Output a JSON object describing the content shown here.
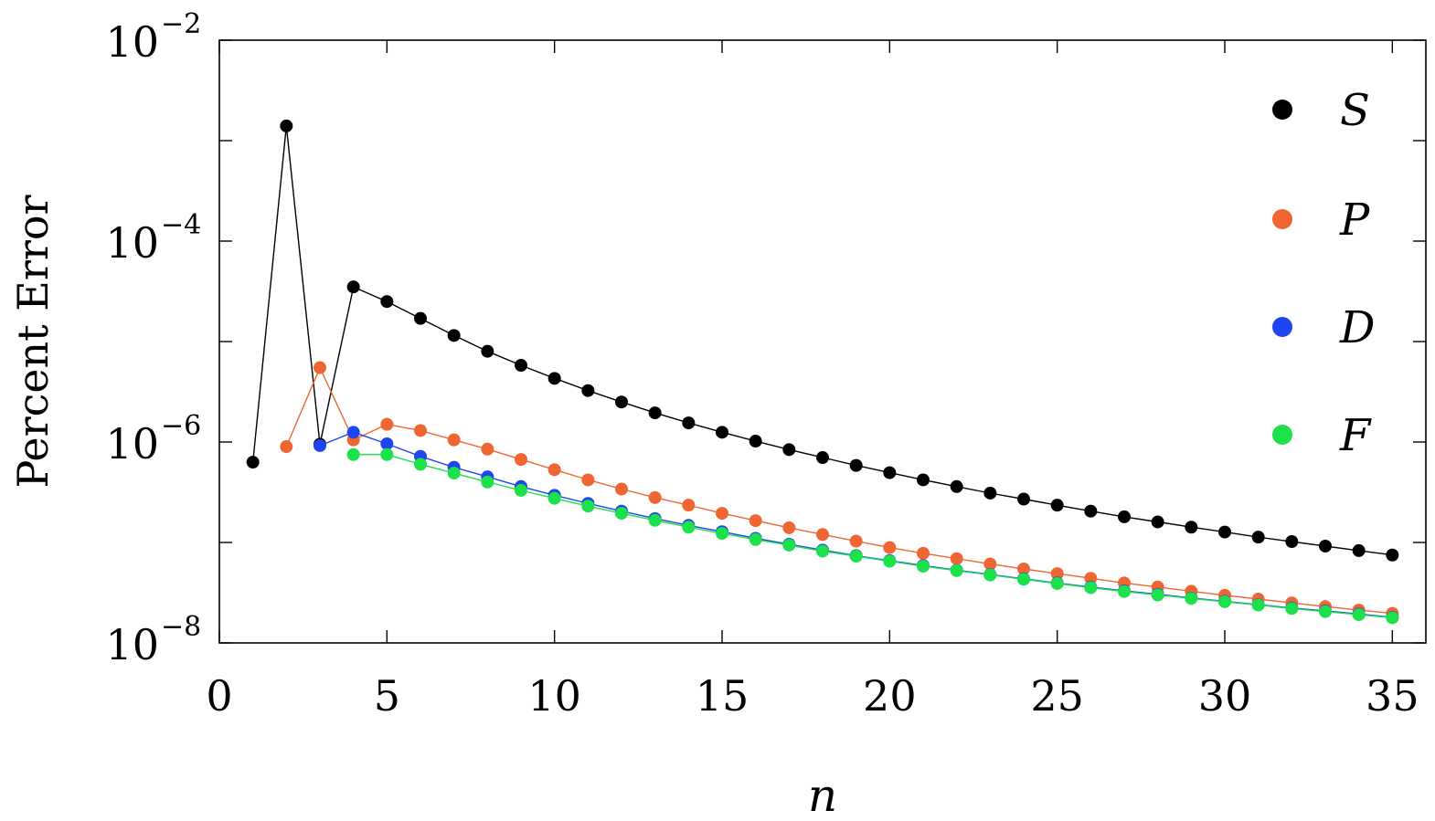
{
  "chart_data": {
    "type": "scatter",
    "xlabel": "n",
    "ylabel": "Percent Error",
    "xlim": [
      0,
      36
    ],
    "ylim": [
      1e-08,
      0.01
    ],
    "yscale": "log",
    "x_ticks": [
      "0",
      "5",
      "10",
      "15",
      "20",
      "25",
      "30",
      "35"
    ],
    "y_ticks": [
      {
        "base": "10",
        "exp": "−8"
      },
      {
        "base": "10",
        "exp": "−6"
      },
      {
        "base": "10",
        "exp": "−4"
      },
      {
        "base": "10",
        "exp": "−2"
      }
    ],
    "legend_position": "right",
    "series": [
      {
        "name": "S",
        "color": "#000000",
        "x": [
          1,
          2,
          3,
          4,
          5,
          6,
          7,
          8,
          9,
          10,
          11,
          12,
          13,
          14,
          15,
          16,
          17,
          18,
          19,
          20,
          21,
          22,
          23,
          24,
          25,
          26,
          27,
          28,
          29,
          30,
          31,
          32,
          33,
          34,
          35
        ],
        "y": [
          6.3e-07,
          0.0014,
          9.5e-07,
          3.5e-05,
          2.5e-05,
          1.7e-05,
          1.15e-05,
          8e-06,
          5.8e-06,
          4.3e-06,
          3.25e-06,
          2.5e-06,
          1.95e-06,
          1.55e-06,
          1.25e-06,
          1.02e-06,
          8.4e-07,
          7e-07,
          5.85e-07,
          4.95e-07,
          4.2e-07,
          3.6e-07,
          3.1e-07,
          2.7e-07,
          2.35e-07,
          2.05e-07,
          1.8e-07,
          1.6e-07,
          1.42e-07,
          1.27e-07,
          1.13e-07,
          1.02e-07,
          9.2e-08,
          8.3e-08,
          7.5e-08
        ]
      },
      {
        "name": "P",
        "color": "#ef6633",
        "x": [
          2,
          3,
          4,
          5,
          6,
          7,
          8,
          9,
          10,
          11,
          12,
          13,
          14,
          15,
          16,
          17,
          18,
          19,
          20,
          21,
          22,
          23,
          24,
          25,
          26,
          27,
          28,
          29,
          30,
          31,
          32,
          33,
          34,
          35
        ],
        "y": [
          9e-07,
          5.5e-06,
          1.05e-06,
          1.5e-06,
          1.3e-06,
          1.05e-06,
          8.5e-07,
          6.7e-07,
          5.3e-07,
          4.2e-07,
          3.4e-07,
          2.8e-07,
          2.35e-07,
          1.95e-07,
          1.65e-07,
          1.4e-07,
          1.2e-07,
          1.03e-07,
          8.9e-08,
          7.8e-08,
          6.9e-08,
          6.1e-08,
          5.45e-08,
          4.9e-08,
          4.4e-08,
          3.95e-08,
          3.6e-08,
          3.27e-08,
          2.98e-08,
          2.73e-08,
          2.5e-08,
          2.3e-08,
          2.12e-08,
          1.97e-08
        ]
      },
      {
        "name": "D",
        "color": "#1f45f0",
        "x": [
          3,
          4,
          5,
          6,
          7,
          8,
          9,
          10,
          11,
          12,
          13,
          14,
          15,
          16,
          17,
          18,
          19,
          20,
          21,
          22,
          23,
          24,
          25,
          26,
          27,
          28,
          29,
          30,
          31,
          32,
          33,
          34,
          35
        ],
        "y": [
          9.2e-07,
          1.25e-06,
          9.6e-07,
          7.2e-07,
          5.6e-07,
          4.5e-07,
          3.6e-07,
          2.95e-07,
          2.45e-07,
          2.05e-07,
          1.73e-07,
          1.48e-07,
          1.28e-07,
          1.1e-07,
          9.6e-08,
          8.4e-08,
          7.4e-08,
          6.6e-08,
          5.9e-08,
          5.3e-08,
          4.8e-08,
          4.35e-08,
          3.95e-08,
          3.6e-08,
          3.3e-08,
          3.05e-08,
          2.8e-08,
          2.6e-08,
          2.4e-08,
          2.23e-08,
          2.08e-08,
          1.94e-08,
          1.8e-08
        ]
      },
      {
        "name": "F",
        "color": "#1de14a",
        "x": [
          4,
          5,
          6,
          7,
          8,
          9,
          10,
          11,
          12,
          13,
          14,
          15,
          16,
          17,
          18,
          19,
          20,
          21,
          22,
          23,
          24,
          25,
          26,
          27,
          28,
          29,
          30,
          31,
          32,
          33,
          34,
          35
        ],
        "y": [
          7.5e-07,
          7.5e-07,
          6e-07,
          4.9e-07,
          4e-07,
          3.3e-07,
          2.75e-07,
          2.3e-07,
          1.95e-07,
          1.66e-07,
          1.42e-07,
          1.23e-07,
          1.07e-07,
          9.4e-08,
          8.2e-08,
          7.3e-08,
          6.5e-08,
          5.8e-08,
          5.25e-08,
          4.75e-08,
          4.3e-08,
          3.9e-08,
          3.55e-08,
          3.25e-08,
          3e-08,
          2.77e-08,
          2.57e-08,
          2.38e-08,
          2.2e-08,
          2.05e-08,
          1.91e-08,
          1.78e-08
        ]
      }
    ]
  }
}
